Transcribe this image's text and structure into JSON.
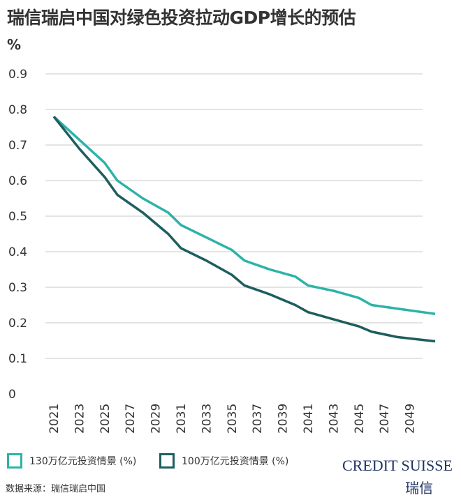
{
  "chart_data": {
    "type": "line",
    "title": "瑞信瑞启中国对绿色投资拉动GDP增长的预估",
    "ylabel": "%",
    "xlabel": "",
    "ylim": [
      0,
      0.9
    ],
    "xlim": [
      2021,
      2051
    ],
    "yticks": [
      "0",
      "0.1",
      "0.2",
      "0.3",
      "0.4",
      "0.5",
      "0.6",
      "0.7",
      "0.8",
      "0.9"
    ],
    "xticks": [
      "2021",
      "2023",
      "2025",
      "2027",
      "2029",
      "2031",
      "2033",
      "2035",
      "2037",
      "2039",
      "2041",
      "2043",
      "2045",
      "2047",
      "2049"
    ],
    "grid": true,
    "legend_position": "bottom",
    "series": [
      {
        "name": "130万亿元投资情景 (%)",
        "color": "#2db3a8",
        "x": [
          2021,
          2023,
          2025,
          2026,
          2028,
          2030,
          2031,
          2033,
          2035,
          2036,
          2038,
          2040,
          2041,
          2043,
          2045,
          2046,
          2048,
          2050,
          2051
        ],
        "values": [
          0.78,
          0.715,
          0.65,
          0.6,
          0.55,
          0.51,
          0.475,
          0.44,
          0.405,
          0.375,
          0.35,
          0.33,
          0.305,
          0.29,
          0.27,
          0.25,
          0.24,
          0.23,
          0.225
        ]
      },
      {
        "name": "100万亿元投资情景 (%)",
        "color": "#1d5e5e",
        "x": [
          2021,
          2023,
          2025,
          2026,
          2028,
          2030,
          2031,
          2033,
          2035,
          2036,
          2038,
          2040,
          2041,
          2043,
          2045,
          2046,
          2048,
          2050,
          2051
        ],
        "values": [
          0.78,
          0.69,
          0.61,
          0.56,
          0.51,
          0.45,
          0.41,
          0.375,
          0.335,
          0.305,
          0.28,
          0.25,
          0.23,
          0.21,
          0.19,
          0.175,
          0.16,
          0.152,
          0.148
        ]
      }
    ]
  },
  "source": "数据来源：瑞信瑞启中国",
  "logo": {
    "text": "CREDIT SUISSE",
    "cn": "瑞信"
  }
}
